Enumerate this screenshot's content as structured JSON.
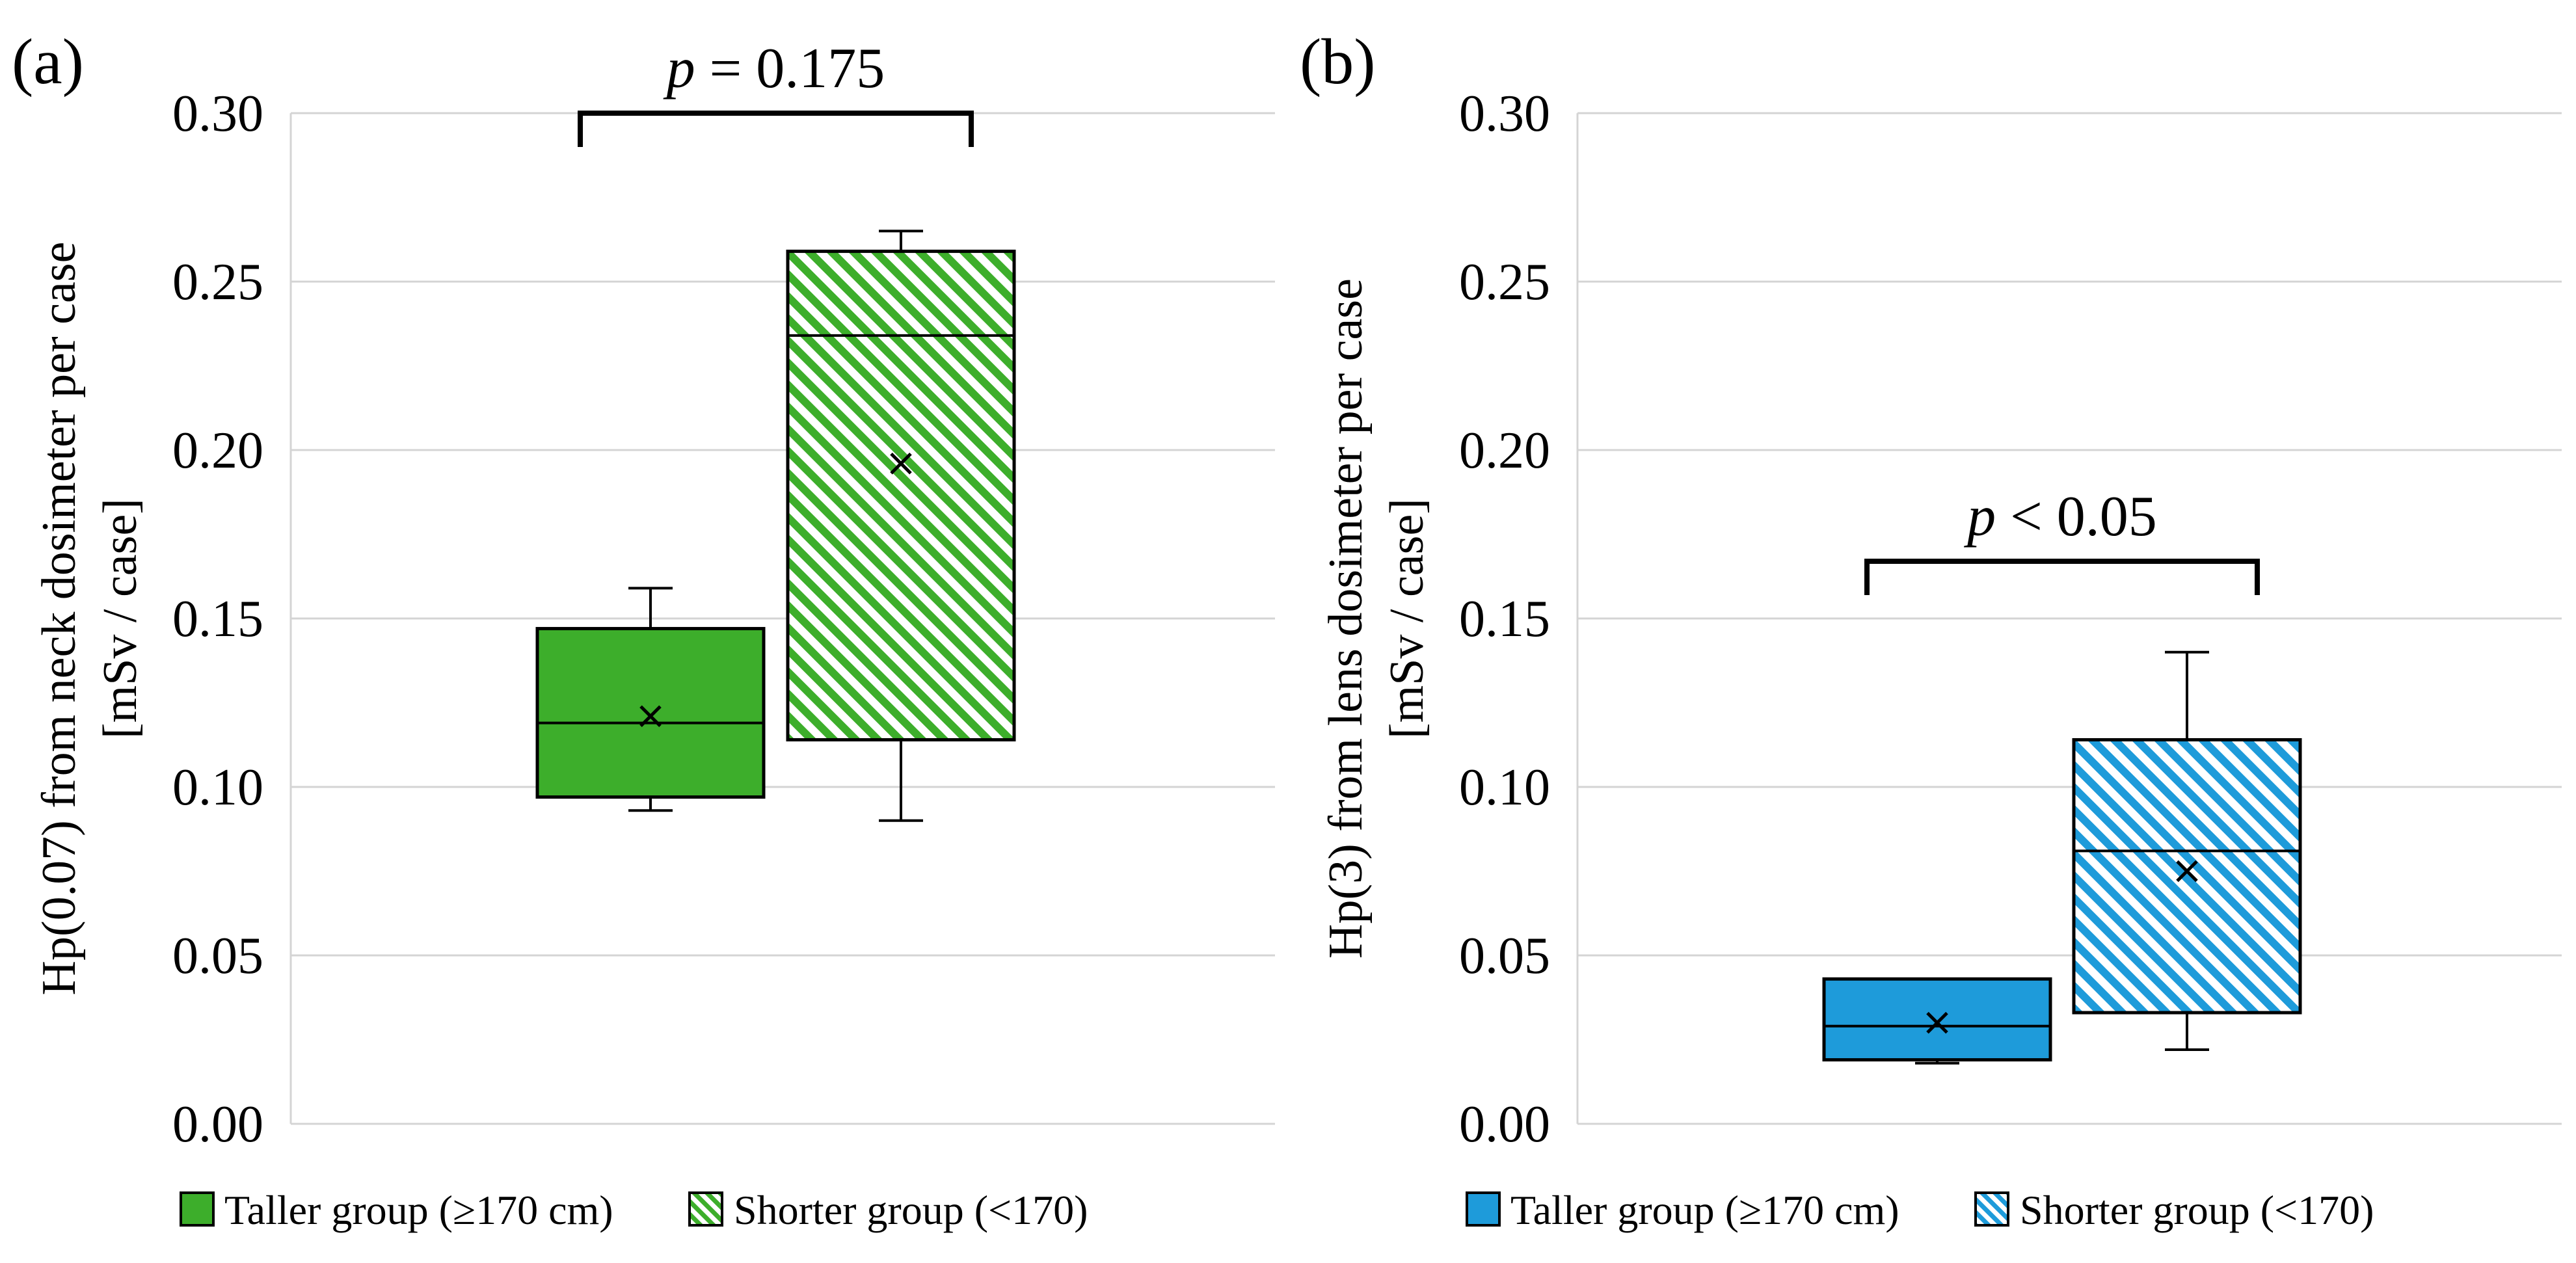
{
  "chart_data": [
    {
      "type": "box",
      "panel_label": "(a)",
      "title": "",
      "xlabel": "",
      "ylabel": [
        "Hp(0.07) from neck dosimeter per case",
        "[mSv / case]"
      ],
      "ylim": [
        0,
        0.3
      ],
      "yticks": [
        "0.00",
        "0.05",
        "0.10",
        "0.15",
        "0.20",
        "0.25",
        "0.30"
      ],
      "grid": true,
      "legend_position": "bottom",
      "color": "#3DAE2B",
      "series": [
        {
          "name": "Taller group (≥170 cm)",
          "pattern": "solid",
          "min": 0.093,
          "q1": 0.097,
          "median": 0.119,
          "q3": 0.147,
          "max": 0.159,
          "mean": 0.121
        },
        {
          "name": "Shorter group (<170)",
          "pattern": "hatched",
          "min": 0.09,
          "q1": 0.114,
          "median": 0.234,
          "q3": 0.259,
          "max": 0.265,
          "mean": 0.196
        }
      ],
      "annotation": {
        "p_symbol": "p",
        "p_text": " = 0.175",
        "bracket_level": 0.3
      }
    },
    {
      "type": "box",
      "panel_label": "(b)",
      "title": "",
      "xlabel": "",
      "ylabel": [
        "Hp(3) from lens dosimeter per case",
        "[mSv / case]"
      ],
      "ylim": [
        0,
        0.3
      ],
      "yticks": [
        "0.00",
        "0.05",
        "0.10",
        "0.15",
        "0.20",
        "0.25",
        "0.30"
      ],
      "grid": true,
      "legend_position": "bottom",
      "color": "#1E9BDA",
      "series": [
        {
          "name": "Taller group (≥170 cm)",
          "pattern": "solid",
          "min": 0.018,
          "q1": 0.019,
          "median": 0.029,
          "q3": 0.043,
          "max": 0.043,
          "mean": 0.03
        },
        {
          "name": "Shorter group (<170)",
          "pattern": "hatched",
          "min": 0.022,
          "q1": 0.033,
          "median": 0.081,
          "q3": 0.114,
          "max": 0.14,
          "mean": 0.075
        }
      ],
      "annotation": {
        "p_symbol": "p",
        "p_text": " < 0.05",
        "bracket_level": 0.167
      }
    }
  ]
}
